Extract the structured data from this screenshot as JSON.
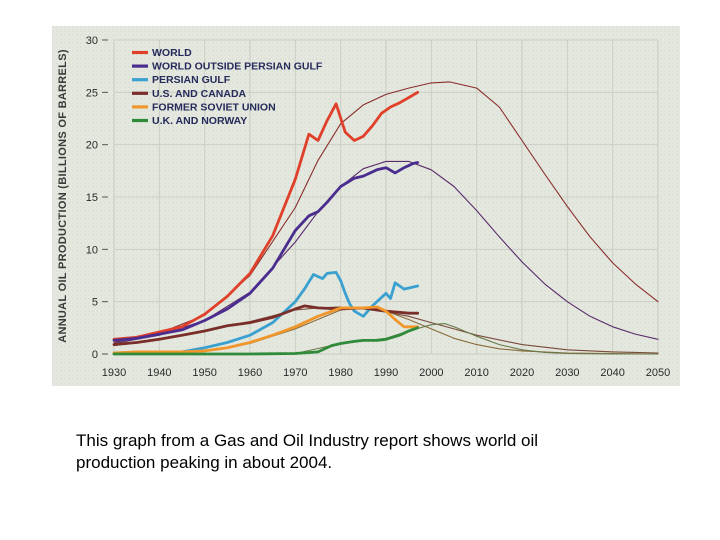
{
  "caption": {
    "line1": "This graph from a Gas and Oil Industry report shows world oil",
    "line2": "production peaking in about 2004."
  },
  "chart_data": {
    "type": "line",
    "title": "",
    "xlabel": "",
    "ylabel": "ANNUAL OIL PRODUCTION (BILLIONS OF BARRELS)",
    "xlim": [
      1930,
      2050
    ],
    "ylim": [
      0,
      30
    ],
    "x_ticks": [
      "1930",
      "1940",
      "1950",
      "1960",
      "1970",
      "1980",
      "1990",
      "2000",
      "2010",
      "2020",
      "2030",
      "2040",
      "2050"
    ],
    "y_ticks": [
      "0",
      "5",
      "10",
      "15",
      "20",
      "25",
      "30"
    ],
    "grid": true,
    "legend_position": "top-left",
    "series": [
      {
        "name": "WORLD",
        "color": "#e0402a",
        "style": "historical",
        "x": [
          1930,
          1935,
          1940,
          1945,
          1950,
          1955,
          1960,
          1965,
          1970,
          1973,
          1975,
          1977,
          1979,
          1981,
          1983,
          1985,
          1987,
          1989,
          1991,
          1993,
          1995,
          1997
        ],
        "y": [
          1.4,
          1.6,
          2.1,
          2.6,
          3.8,
          5.5,
          7.7,
          11.3,
          16.7,
          21.0,
          20.4,
          22.3,
          23.9,
          21.2,
          20.4,
          20.8,
          21.8,
          23.0,
          23.6,
          24.0,
          24.5,
          25.0
        ]
      },
      {
        "name": "WORLD OUTSIDE PERSIAN GULF",
        "color": "#4b2d8f",
        "style": "historical",
        "x": [
          1930,
          1935,
          1940,
          1945,
          1950,
          1955,
          1960,
          1965,
          1970,
          1973,
          1975,
          1977,
          1980,
          1983,
          1985,
          1988,
          1990,
          1992,
          1994,
          1996,
          1997
        ],
        "y": [
          1.3,
          1.5,
          1.9,
          2.3,
          3.2,
          4.3,
          5.8,
          8.2,
          11.8,
          13.2,
          13.6,
          14.5,
          16.0,
          16.8,
          17.0,
          17.6,
          17.8,
          17.3,
          17.8,
          18.2,
          18.3
        ]
      },
      {
        "name": "PERSIAN GULF",
        "color": "#3aa0d0",
        "style": "historical",
        "x": [
          1945,
          1950,
          1955,
          1960,
          1965,
          1970,
          1972,
          1974,
          1976,
          1977,
          1979,
          1980,
          1981,
          1982,
          1983,
          1985,
          1987,
          1989,
          1990,
          1991,
          1992,
          1994,
          1996,
          1997
        ],
        "y": [
          0.2,
          0.6,
          1.1,
          1.8,
          3.0,
          5.0,
          6.2,
          7.6,
          7.2,
          7.7,
          7.8,
          7.0,
          5.8,
          4.8,
          4.1,
          3.6,
          4.6,
          5.4,
          5.8,
          5.3,
          6.8,
          6.2,
          6.4,
          6.5
        ]
      },
      {
        "name": "U.S. AND CANADA",
        "color": "#7a2e2a",
        "style": "historical",
        "x": [
          1930,
          1935,
          1940,
          1945,
          1950,
          1955,
          1960,
          1965,
          1970,
          1972,
          1975,
          1980,
          1985,
          1990,
          1995,
          1997
        ],
        "y": [
          0.9,
          1.1,
          1.4,
          1.8,
          2.2,
          2.7,
          3.0,
          3.5,
          4.3,
          4.6,
          4.4,
          4.3,
          4.4,
          4.1,
          3.9,
          3.9
        ]
      },
      {
        "name": "FORMER SOVIET UNION",
        "color": "#f0962a",
        "style": "historical",
        "x": [
          1930,
          1935,
          1940,
          1945,
          1950,
          1955,
          1960,
          1965,
          1970,
          1975,
          1980,
          1985,
          1988,
          1990,
          1992,
          1994,
          1996,
          1997
        ],
        "y": [
          0.1,
          0.2,
          0.2,
          0.2,
          0.3,
          0.6,
          1.1,
          1.8,
          2.6,
          3.6,
          4.4,
          4.4,
          4.5,
          4.1,
          3.3,
          2.6,
          2.6,
          2.6
        ]
      },
      {
        "name": "U.K. AND NORWAY",
        "color": "#2f8a3a",
        "style": "historical",
        "x": [
          1930,
          1960,
          1970,
          1975,
          1978,
          1980,
          1983,
          1985,
          1988,
          1990,
          1993,
          1995,
          1997
        ],
        "y": [
          0,
          0,
          0.05,
          0.2,
          0.8,
          1.0,
          1.2,
          1.3,
          1.3,
          1.4,
          1.8,
          2.2,
          2.5
        ]
      },
      {
        "name": "WORLD (fitted curve)",
        "color": "#8a2d2a",
        "style": "fit",
        "x": [
          1930,
          1940,
          1950,
          1960,
          1970,
          1975,
          1980,
          1985,
          1990,
          1995,
          2000,
          2004,
          2010,
          2015,
          2020,
          2025,
          2030,
          2035,
          2040,
          2045,
          2050
        ],
        "y": [
          1.1,
          2.0,
          3.7,
          7.5,
          14.0,
          18.5,
          22.0,
          23.8,
          24.8,
          25.4,
          25.9,
          26.0,
          25.4,
          23.6,
          20.4,
          17.2,
          14.1,
          11.2,
          8.7,
          6.7,
          5.0
        ]
      },
      {
        "name": "WORLD OUTSIDE PERSIAN GULF (fitted curve)",
        "color": "#5a2a6a",
        "style": "fit",
        "x": [
          1930,
          1940,
          1950,
          1960,
          1970,
          1975,
          1980,
          1985,
          1990,
          1995,
          2000,
          2005,
          2010,
          2015,
          2020,
          2025,
          2030,
          2035,
          2040,
          2045,
          2050
        ],
        "y": [
          1.0,
          1.8,
          3.2,
          5.9,
          10.7,
          13.6,
          16.0,
          17.7,
          18.4,
          18.4,
          17.6,
          16.0,
          13.7,
          11.2,
          8.8,
          6.7,
          5.0,
          3.6,
          2.6,
          1.9,
          1.4
        ]
      },
      {
        "name": "U.S. AND CANADA (fitted curve)",
        "color": "#7a4a3a",
        "style": "fit",
        "x": [
          1930,
          1945,
          1960,
          1970,
          1975,
          1980,
          1985,
          1990,
          1995,
          2000,
          2005,
          2010,
          2020,
          2030,
          2040,
          2050
        ],
        "y": [
          0.8,
          1.8,
          3.1,
          4.2,
          4.4,
          4.5,
          4.3,
          4.0,
          3.6,
          3.0,
          2.4,
          1.8,
          0.9,
          0.4,
          0.2,
          0.1
        ]
      },
      {
        "name": "FORMER SOVIET UNION (fitted curve)",
        "color": "#8a6a3a",
        "style": "fit",
        "x": [
          1950,
          1960,
          1970,
          1980,
          1985,
          1990,
          1995,
          2000,
          2005,
          2010,
          2015,
          2020,
          2030,
          2040,
          2050
        ],
        "y": [
          0.3,
          1.0,
          2.4,
          4.2,
          4.5,
          4.1,
          3.3,
          2.4,
          1.5,
          0.9,
          0.5,
          0.3,
          0.1,
          0.05,
          0.0
        ]
      },
      {
        "name": "U.K. AND NORWAY (fitted curve)",
        "color": "#6a7a4a",
        "style": "fit",
        "x": [
          1970,
          1980,
          1990,
          1995,
          2000,
          2003,
          2005,
          2010,
          2015,
          2020,
          2025,
          2030,
          2040,
          2050
        ],
        "y": [
          0.05,
          1.0,
          1.5,
          2.2,
          2.8,
          2.9,
          2.6,
          1.7,
          0.9,
          0.4,
          0.15,
          0.05,
          0.0,
          0.0
        ]
      }
    ]
  }
}
